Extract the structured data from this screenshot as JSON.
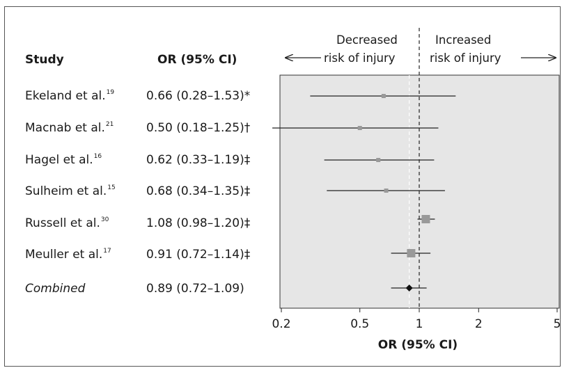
{
  "headers": {
    "study": "Study",
    "or": "OR (95% CI)"
  },
  "annotations": {
    "left_line1": "Decreased",
    "left_line2": "risk of injury",
    "right_line1": "Increased",
    "right_line2": "risk of injury"
  },
  "rows": [
    {
      "study": "Ekeland et al.",
      "ref": "19",
      "or_text": "0.66 (0.28–1.53)*"
    },
    {
      "study": "Macnab et al.",
      "ref": "21",
      "or_text": "0.50 (0.18–1.25)†"
    },
    {
      "study": "Hagel et al.",
      "ref": "16",
      "or_text": "0.62 (0.33–1.19)‡"
    },
    {
      "study": "Sulheim et al.",
      "ref": "15",
      "or_text": "0.68 (0.34–1.35)‡"
    },
    {
      "study": "Russell et al.",
      "ref": "30",
      "or_text": "1.08 (0.98–1.20)‡"
    },
    {
      "study": "Meuller et al.",
      "ref": "17",
      "or_text": "0.91 (0.72–1.14)‡"
    },
    {
      "study": "Combined",
      "ref": "",
      "or_text": "0.89 (0.72–1.09)"
    }
  ],
  "chart_data": {
    "type": "forest",
    "scale": "log",
    "xlim": [
      0.2,
      5
    ],
    "xticks": [
      0.2,
      0.5,
      1,
      2,
      5
    ],
    "xtick_labels": [
      "0.2",
      "0.5",
      "1",
      "2",
      "5"
    ],
    "xlabel": "OR (95% CI)",
    "reference_line": 1,
    "combined_line": 0.89,
    "studies": [
      {
        "label": "Ekeland et al.",
        "or": 0.66,
        "lo": 0.28,
        "hi": 1.53,
        "weight": "small"
      },
      {
        "label": "Macnab et al.",
        "or": 0.5,
        "lo": 0.18,
        "hi": 1.25,
        "weight": "small"
      },
      {
        "label": "Hagel et al.",
        "or": 0.62,
        "lo": 0.33,
        "hi": 1.19,
        "weight": "small"
      },
      {
        "label": "Sulheim et al.",
        "or": 0.68,
        "lo": 0.34,
        "hi": 1.35,
        "weight": "small"
      },
      {
        "label": "Russell et al.",
        "or": 1.08,
        "lo": 0.98,
        "hi": 1.2,
        "weight": "large"
      },
      {
        "label": "Meuller et al.",
        "or": 0.91,
        "lo": 0.72,
        "hi": 1.14,
        "weight": "large"
      },
      {
        "label": "Combined",
        "or": 0.89,
        "lo": 0.72,
        "hi": 1.09,
        "weight": "diamond"
      }
    ],
    "colors": {
      "plot_bg": "#e6e6e6",
      "marker": "#999999",
      "line": "#222222"
    }
  }
}
